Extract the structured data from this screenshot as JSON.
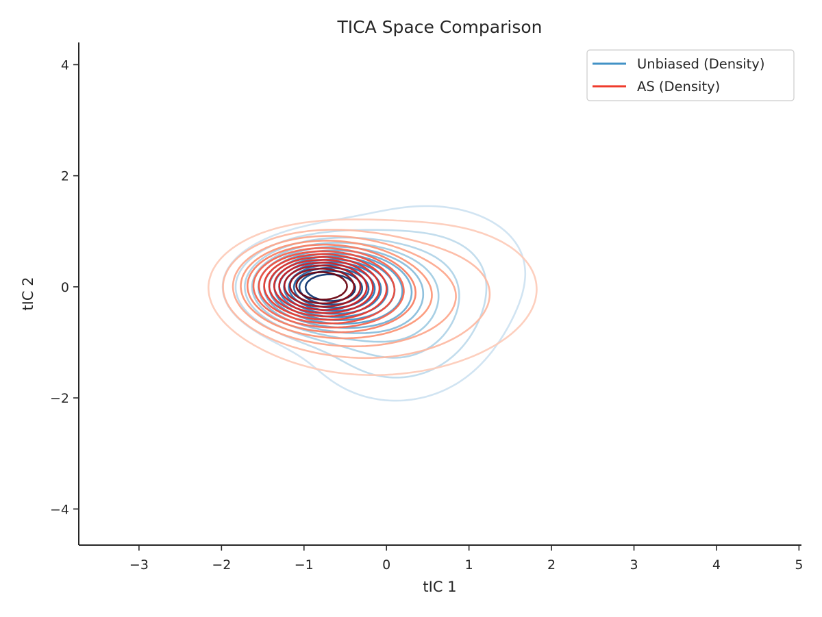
{
  "chart_data": {
    "type": "contour",
    "title": "TICA Space Comparison",
    "xlabel": "tIC 1",
    "ylabel": "tIC 2",
    "xlim": [
      -3.73,
      5.03
    ],
    "ylim": [
      -4.65,
      4.4
    ],
    "xticks": [
      -3,
      -2,
      -1,
      0,
      1,
      2,
      3,
      4,
      5
    ],
    "yticks": [
      -4,
      -2,
      0,
      2,
      4
    ],
    "xtick_labels": [
      "−3",
      "−2",
      "−1",
      "0",
      "1",
      "2",
      "3",
      "4",
      "5"
    ],
    "ytick_labels": [
      "−4",
      "−2",
      "0",
      "2",
      "4"
    ],
    "grid": false,
    "legend": {
      "position": "top-right"
    },
    "series": [
      {
        "name": "Unbiased (Density)",
        "kind": "kde-contours",
        "colormap": "Blues",
        "legend_color": "#4292c6",
        "components": [
          {
            "weight": 0.46,
            "mean": [
              -0.75,
              0.0
            ],
            "sd": [
              0.55,
              0.45
            ]
          },
          {
            "weight": 0.3,
            "mean": [
              0.1,
              -0.75
            ],
            "sd": [
              0.75,
              0.9
            ]
          },
          {
            "weight": 0.24,
            "mean": [
              0.6,
              0.45
            ],
            "sd": [
              1.0,
              0.95
            ]
          }
        ]
      },
      {
        "name": "AS (Density)",
        "kind": "kde-contours",
        "colormap": "Reds",
        "legend_color": "#ef3b2c",
        "components": [
          {
            "weight": 0.42,
            "mean": [
              -0.85,
              0.05
            ],
            "sd": [
              0.55,
              0.45
            ]
          },
          {
            "weight": 0.33,
            "mean": [
              -0.35,
              -0.35
            ],
            "sd": [
              0.9,
              0.75
            ]
          },
          {
            "weight": 0.25,
            "mean": [
              0.75,
              0.05
            ],
            "sd": [
              1.1,
              1.0
            ]
          }
        ]
      }
    ]
  }
}
